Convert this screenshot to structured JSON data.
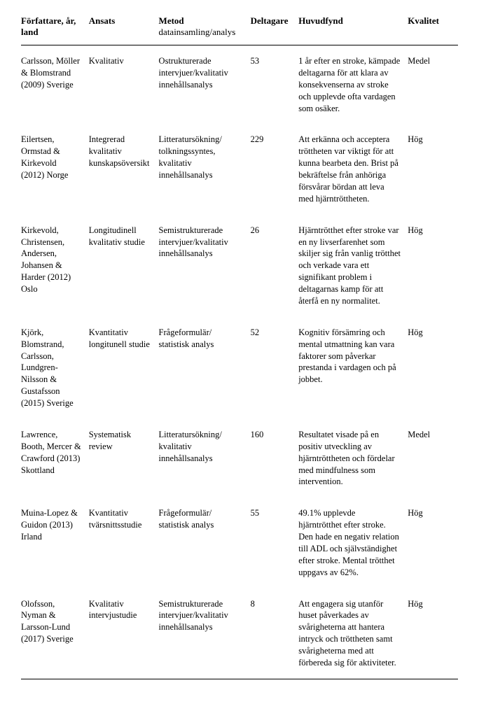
{
  "headers": {
    "author": "Författare, år, land",
    "ansats": "Ansats",
    "metod_main": "Metod",
    "metod_sub": "datainsamling/analys",
    "deltagare": "Deltagare",
    "huvudfynd": "Huvudfynd",
    "kvalitet": "Kvalitet"
  },
  "rows": [
    {
      "author": "Carlsson, Möller & Blomstrand (2009) Sverige",
      "ansats": "Kvalitativ",
      "metod": "Ostrukturerade intervjuer/kvalitativ innehållsanalys",
      "deltagare": "53",
      "huvudfynd": "1 år efter en stroke, kämpade deltagarna för att klara av konsekvenserna av stroke och upplevde ofta vardagen som osäker.",
      "kvalitet": "Medel"
    },
    {
      "author": "Eilertsen, Ormstad & Kirkevold (2012) Norge",
      "ansats": "Integrerad kvalitativ kunskapsöversikt",
      "metod": "Litteratursökning/ tolkningssyntes, kvalitativ innehållsanalys",
      "deltagare": "229",
      "huvudfynd": "Att erkänna och acceptera tröttheten var viktigt för att kunna bearbeta den. Brist på bekräftelse från anhöriga försvårar bördan att leva med hjärntröttheten.",
      "kvalitet": "Hög"
    },
    {
      "author": "Kirkevold, Christensen, Andersen, Johansen & Harder (2012) Oslo",
      "ansats": "Longitudinell kvalitativ studie",
      "metod": "Semistrukturerade intervjuer/kvalitativ innehållsanalys",
      "deltagare": "26",
      "huvudfynd": "Hjärntrötthet efter stroke var en ny livserfarenhet som skiljer sig från vanlig trötthet och verkade vara ett signifikant problem i deltagarnas kamp för att återfå en ny normalitet.",
      "kvalitet": "Hög"
    },
    {
      "author": "Kjörk, Blomstrand, Carlsson, Lundgren-Nilsson & Gustafsson (2015) Sverige",
      "ansats": "Kvantitativ longitunell studie",
      "metod": "Frågeformulär/ statistisk analys",
      "deltagare": "52",
      "huvudfynd": "Kognitiv försämring och mental utmattning kan vara faktorer som påverkar prestanda i vardagen och på jobbet.",
      "kvalitet": "Hög"
    },
    {
      "author": "Lawrence, Booth, Mercer & Crawford (2013) Skottland",
      "ansats": "Systematisk review",
      "metod": "Litteratursökning/ kvalitativ innehållsanalys",
      "deltagare": "160",
      "huvudfynd": "Resultatet visade på en positiv utveckling av hjärntröttheten och fördelar med mindfulness som intervention.",
      "kvalitet": "Medel"
    },
    {
      "author": "Muina-Lopez & Guidon (2013) Irland",
      "ansats": "Kvantitativ tvärsnittsstudie",
      "metod": "Frågeformulär/ statistisk analys",
      "deltagare": "55",
      "huvudfynd": "49.1% upplevde hjärntrötthet efter stroke. Den hade en negativ relation till ADL och självständighet efter stroke. Mental trötthet uppgavs av 62%.",
      "kvalitet": "Hög"
    },
    {
      "author": "Olofsson, Nyman & Larsson-Lund (2017) Sverige",
      "ansats": "Kvalitativ intervjustudie",
      "metod": "Semistrukturerade intervjuer/kvalitativ innehållsanalys",
      "deltagare": "8",
      "huvudfynd": "Att engagera sig utanför huset påverkades av svårigheterna att hantera intryck och tröttheten samt svårigheterna med att förbereda sig för aktiviteter.",
      "kvalitet": "Hög"
    }
  ]
}
